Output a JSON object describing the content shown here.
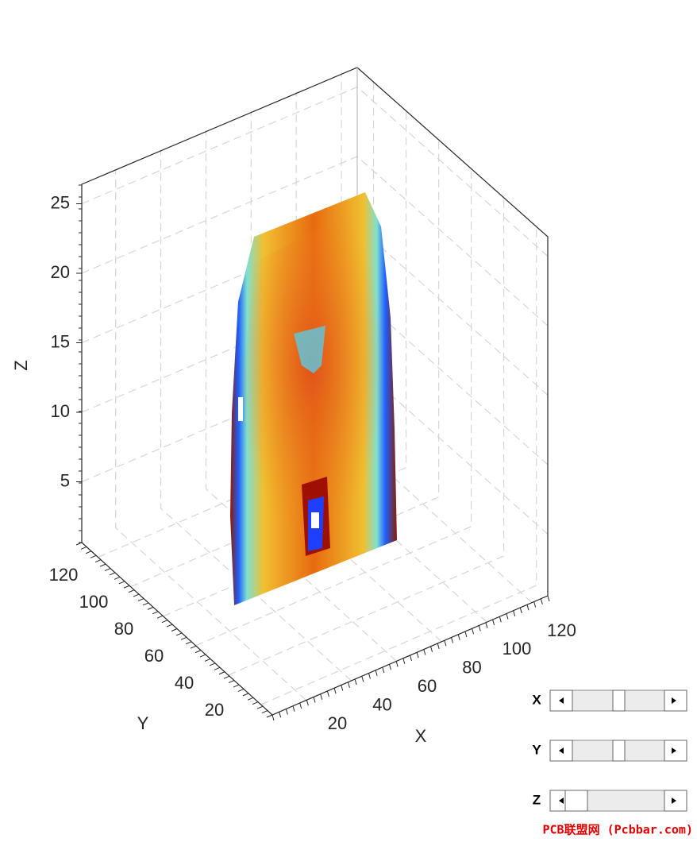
{
  "axes": {
    "z": {
      "label": "Z",
      "ticks": [
        5,
        10,
        15,
        20,
        25
      ]
    },
    "y": {
      "label": "Y",
      "ticks": [
        20,
        40,
        60,
        80,
        100,
        120
      ]
    },
    "x": {
      "label": "X",
      "ticks": [
        20,
        40,
        60,
        80,
        100,
        120
      ]
    }
  },
  "sliders": [
    {
      "label": "X"
    },
    {
      "label": "Y"
    },
    {
      "label": "Z"
    }
  ],
  "watermark": "PCB联盟网 (Pcbbar.com)"
}
